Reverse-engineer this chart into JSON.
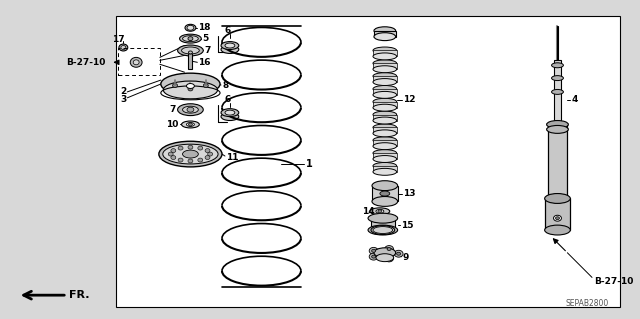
{
  "bg_color": "#ffffff",
  "outer_bg": "#d8d8d8",
  "inner_bg": "#ffffff",
  "part_label": "SEPAB2800",
  "fr_label": "FR.",
  "b2710_left": "B-27-10",
  "b2710_right": "B-27-10",
  "lc": "#000000",
  "gray1": "#aaaaaa",
  "gray2": "#cccccc",
  "gray3": "#888888",
  "gray4": "#666666",
  "gray5": "#e0e0e0"
}
